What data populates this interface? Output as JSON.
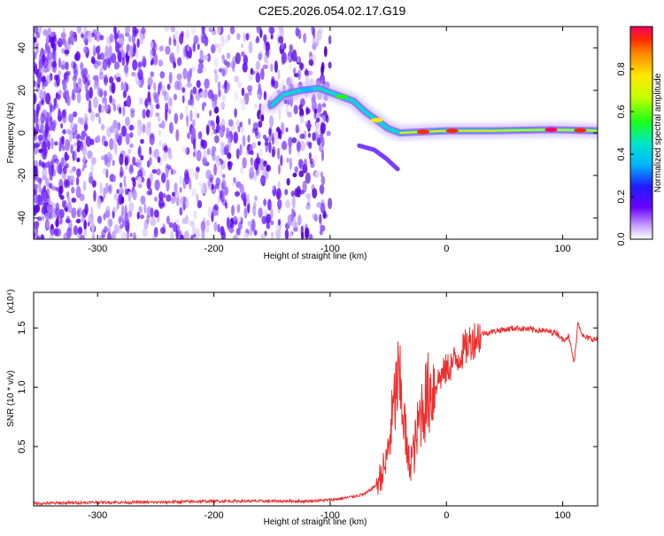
{
  "title": "C2E5.2026.054.02.17.G19",
  "chart_data": [
    {
      "type": "heatmap",
      "xlabel": "Height of straight line (km)",
      "ylabel": "Frequency (Hz)",
      "xlim": [
        -355,
        130
      ],
      "ylim": [
        -50,
        50
      ],
      "xticks": [
        -300,
        -200,
        -100,
        0,
        100
      ],
      "yticks": [
        -40,
        -20,
        0,
        20,
        40
      ],
      "colorbar": {
        "label": "Normalized spectral amplitude",
        "range": [
          0,
          1
        ],
        "ticks": [
          "0.0",
          "0.2",
          "0.4",
          "0.6",
          "0.8"
        ]
      },
      "signal_track": [
        {
          "x": -150,
          "y": 13
        },
        {
          "x": -140,
          "y": 18
        },
        {
          "x": -125,
          "y": 20
        },
        {
          "x": -110,
          "y": 21
        },
        {
          "x": -95,
          "y": 18
        },
        {
          "x": -80,
          "y": 15
        },
        {
          "x": -70,
          "y": 10
        },
        {
          "x": -60,
          "y": 6
        },
        {
          "x": -50,
          "y": 2
        },
        {
          "x": -40,
          "y": 0
        },
        {
          "x": -20,
          "y": 0.5
        },
        {
          "x": 0,
          "y": 1
        },
        {
          "x": 40,
          "y": 1
        },
        {
          "x": 90,
          "y": 1.5
        },
        {
          "x": 130,
          "y": 1
        }
      ]
    },
    {
      "type": "line",
      "xlabel": "Height of straight line (km)",
      "ylabel": "SNR (10 * v/v)",
      "yscale_label": "(x10⁴)",
      "xlim": [
        -355,
        130
      ],
      "ylim": [
        0,
        1.8
      ],
      "xticks": [
        -300,
        -200,
        -100,
        0,
        100
      ],
      "yticks": [
        "0.5",
        "1.0",
        "1.5"
      ],
      "color": "#ee2e2e",
      "series": [
        {
          "name": "SNR",
          "points": [
            [
              -355,
              0.02
            ],
            [
              -300,
              0.03
            ],
            [
              -250,
              0.03
            ],
            [
              -200,
              0.04
            ],
            [
              -150,
              0.04
            ],
            [
              -120,
              0.04
            ],
            [
              -100,
              0.05
            ],
            [
              -85,
              0.07
            ],
            [
              -70,
              0.1
            ],
            [
              -60,
              0.18
            ],
            [
              -52,
              0.35
            ],
            [
              -47,
              0.7
            ],
            [
              -42,
              1.05
            ],
            [
              -38,
              0.9
            ],
            [
              -33,
              0.35
            ],
            [
              -28,
              0.45
            ],
            [
              -22,
              0.8
            ],
            [
              -15,
              0.95
            ],
            [
              -8,
              1.05
            ],
            [
              0,
              1.15
            ],
            [
              10,
              1.25
            ],
            [
              20,
              1.38
            ],
            [
              30,
              1.45
            ],
            [
              45,
              1.48
            ],
            [
              60,
              1.5
            ],
            [
              80,
              1.48
            ],
            [
              95,
              1.46
            ],
            [
              100,
              1.4
            ],
            [
              105,
              1.43
            ],
            [
              110,
              1.2
            ],
            [
              113,
              1.55
            ],
            [
              118,
              1.42
            ],
            [
              130,
              1.4
            ]
          ]
        }
      ]
    }
  ]
}
